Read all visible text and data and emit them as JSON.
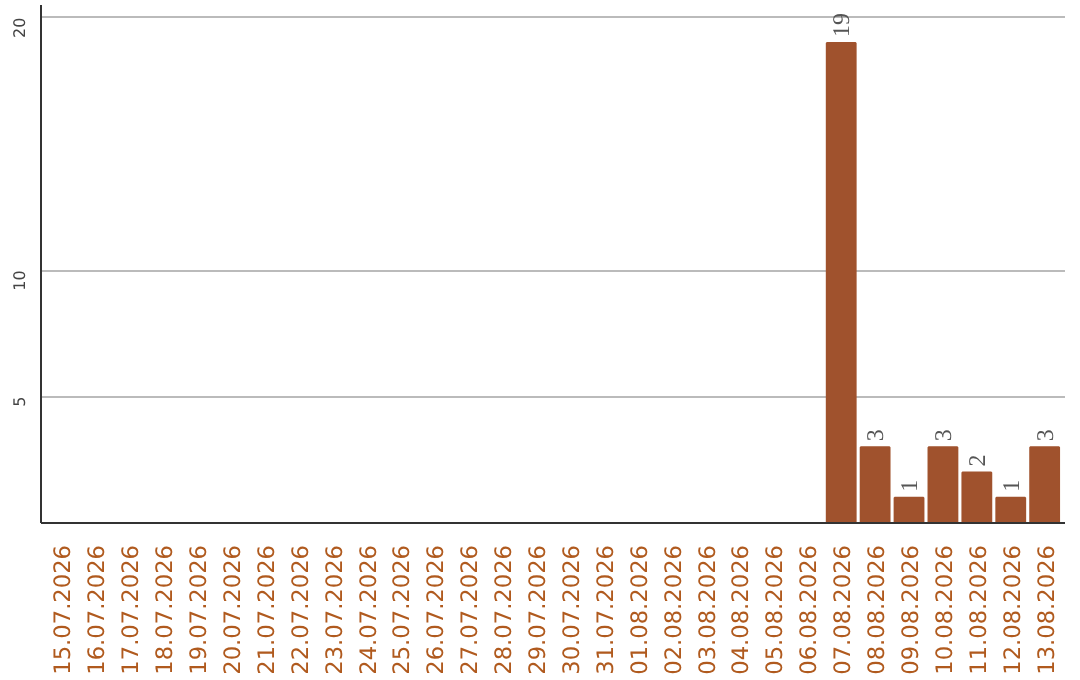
{
  "chart_data": {
    "type": "bar",
    "categories": [
      "15.07.2026",
      "16.07.2026",
      "17.07.2026",
      "18.07.2026",
      "19.07.2026",
      "20.07.2026",
      "21.07.2026",
      "22.07.2026",
      "23.07.2026",
      "24.07.2026",
      "25.07.2026",
      "26.07.2026",
      "27.07.2026",
      "28.07.2026",
      "29.07.2026",
      "30.07.2026",
      "31.07.2026",
      "01.08.2026",
      "02.08.2026",
      "03.08.2026",
      "04.08.2026",
      "05.08.2026",
      "06.08.2026",
      "07.08.2026",
      "08.08.2026",
      "09.08.2026",
      "10.08.2026",
      "11.08.2026",
      "12.08.2026",
      "13.08.2026"
    ],
    "values": [
      0,
      0,
      0,
      0,
      0,
      0,
      0,
      0,
      0,
      0,
      0,
      0,
      0,
      0,
      0,
      0,
      0,
      0,
      0,
      0,
      0,
      0,
      0,
      19,
      3,
      1,
      3,
      2,
      1,
      3
    ],
    "value_labels": [
      null,
      null,
      null,
      null,
      null,
      null,
      null,
      null,
      null,
      null,
      null,
      null,
      null,
      null,
      null,
      null,
      null,
      null,
      null,
      null,
      null,
      null,
      null,
      "19",
      "3",
      "1",
      "3",
      "2",
      "1",
      "3"
    ],
    "color": "#a0522d",
    "ylim": [
      0,
      20.5
    ],
    "yticks": [
      5,
      10,
      20
    ],
    "grid": "y"
  }
}
